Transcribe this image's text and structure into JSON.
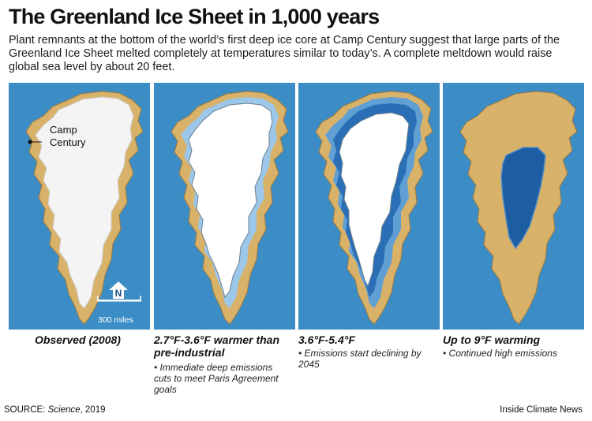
{
  "title": "The Greenland Ice Sheet in 1,000 years",
  "subtitle": "Plant remnants at the bottom of the world’s first deep ice core at Camp Century suggest that large parts of the Greenland Ice Sheet melted completely at temperatures similar to today’s. A complete meltdown would raise global sea level by about 20 feet.",
  "colors": {
    "ocean": "#3c8dc5",
    "land": "#d9b26a",
    "ice": "#f4f4f4",
    "meltwater": "#1d5ea3"
  },
  "panels": [
    {
      "caption": "Observed (2008)",
      "note": "",
      "ice_level": "full"
    },
    {
      "caption": "2.7°F-3.6°F warmer than pre-industrial",
      "note": "Immediate deep emissions cuts to meet Paris Agreement goals",
      "ice_level": "slight-retreat"
    },
    {
      "caption": "3.6°F-5.4°F",
      "note": "Emissions start declining by 2045",
      "ice_level": "moderate-retreat"
    },
    {
      "caption": "Up to 9°F warming",
      "note": "Continued high emissions",
      "ice_level": "near-complete-loss"
    }
  ],
  "map_labels": {
    "location_line1": "Camp",
    "location_line2": "Century",
    "north": "N",
    "scale": "300 miles"
  },
  "footer": {
    "source_prefix": "SOURCE: ",
    "source_name": "Science",
    "source_year": ", 2019",
    "credit": "Inside Climate News"
  }
}
